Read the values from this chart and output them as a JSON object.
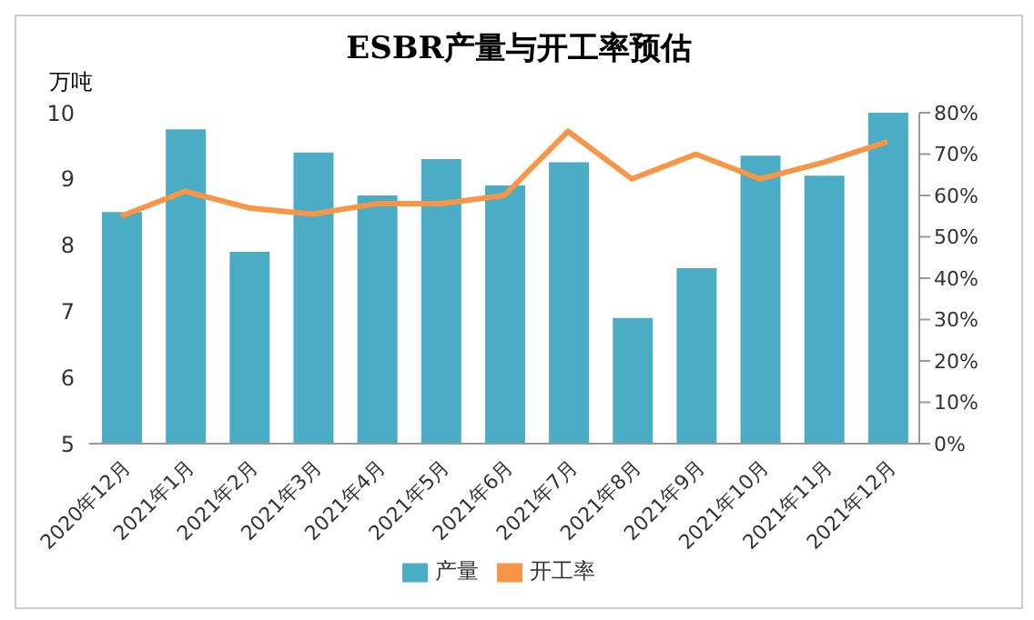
{
  "chart_data": {
    "type": "bar",
    "title": "ESBR产量与开工率预估",
    "ylabel": "万吨",
    "categories": [
      "2020年12月",
      "2021年1月",
      "2021年2月",
      "2021年3月",
      "2021年4月",
      "2021年5月",
      "2021年6月",
      "2021年7月",
      "2021年8月",
      "2021年9月",
      "2021年10月",
      "2021年11月",
      "2021年12月"
    ],
    "series": [
      {
        "name": "产量",
        "color": "#4bacc6",
        "values": [
          8.5,
          9.75,
          7.9,
          9.4,
          8.75,
          9.3,
          8.9,
          9.25,
          6.9,
          7.65,
          9.35,
          9.05,
          10.0
        ]
      },
      {
        "name": "开工率",
        "type": "line",
        "axis": "y2",
        "color": "#f79646",
        "values": [
          55,
          61,
          57,
          55.5,
          58,
          58,
          60,
          75.5,
          64,
          70,
          64,
          68,
          73
        ]
      }
    ],
    "ylim": [
      5,
      10
    ],
    "yticks": [
      5,
      6,
      7,
      8,
      9,
      10
    ],
    "y2lim": [
      0,
      80
    ],
    "y2ticks": [
      {
        "value": 0,
        "label": "0%"
      },
      {
        "value": 10,
        "label": "10%"
      },
      {
        "value": 20,
        "label": "20%"
      },
      {
        "value": 30,
        "label": "30%"
      },
      {
        "value": 40,
        "label": "40%"
      },
      {
        "value": 50,
        "label": "50%"
      },
      {
        "value": 60,
        "label": "60%"
      },
      {
        "value": 70,
        "label": "70%"
      },
      {
        "value": 80,
        "label": "80%"
      }
    ],
    "legend": "bottom",
    "marker": "none",
    "grid": false
  }
}
